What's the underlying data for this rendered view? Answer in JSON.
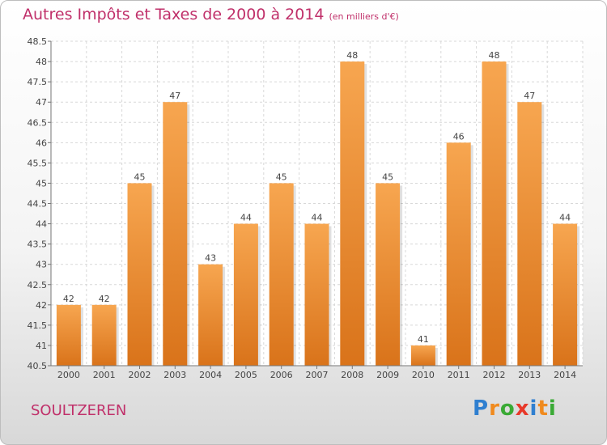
{
  "header": {
    "title": "Autres Impôts et Taxes de 2000 à 2014",
    "unit": "(en milliers d'€)"
  },
  "footer": {
    "town": "SOULTZEREN",
    "brand": [
      "P",
      "r",
      "o",
      "x",
      "i",
      "t",
      "i"
    ],
    "brand_colors": [
      "#2f7fd0",
      "#f08a1e",
      "#3aaa35",
      "#e8392a",
      "#2f7fd0",
      "#f08a1e",
      "#3aaa35"
    ]
  },
  "chart_data": {
    "type": "bar",
    "categories": [
      "2000",
      "2001",
      "2002",
      "2003",
      "2004",
      "2005",
      "2006",
      "2007",
      "2008",
      "2009",
      "2010",
      "2011",
      "2012",
      "2013",
      "2014"
    ],
    "values": [
      42,
      42,
      45,
      47,
      43,
      44,
      45,
      44,
      48,
      45,
      41,
      46,
      48,
      47,
      44
    ],
    "data_labels": [
      "42",
      "42",
      "45",
      "47",
      "43",
      "44",
      "45",
      "44",
      "48",
      "45",
      "41",
      "46",
      "48",
      "47",
      "44"
    ],
    "y_ticks": [
      "40.5",
      "41",
      "41.5",
      "42",
      "42.5",
      "43",
      "43.5",
      "44",
      "44.5",
      "45",
      "45.5",
      "46",
      "46.5",
      "47",
      "47.5",
      "48",
      "48.5"
    ],
    "ylim": [
      40.5,
      48.5
    ],
    "grid": true,
    "bar_color_top": "#f7a650",
    "bar_color_bottom": "#d9731a"
  }
}
